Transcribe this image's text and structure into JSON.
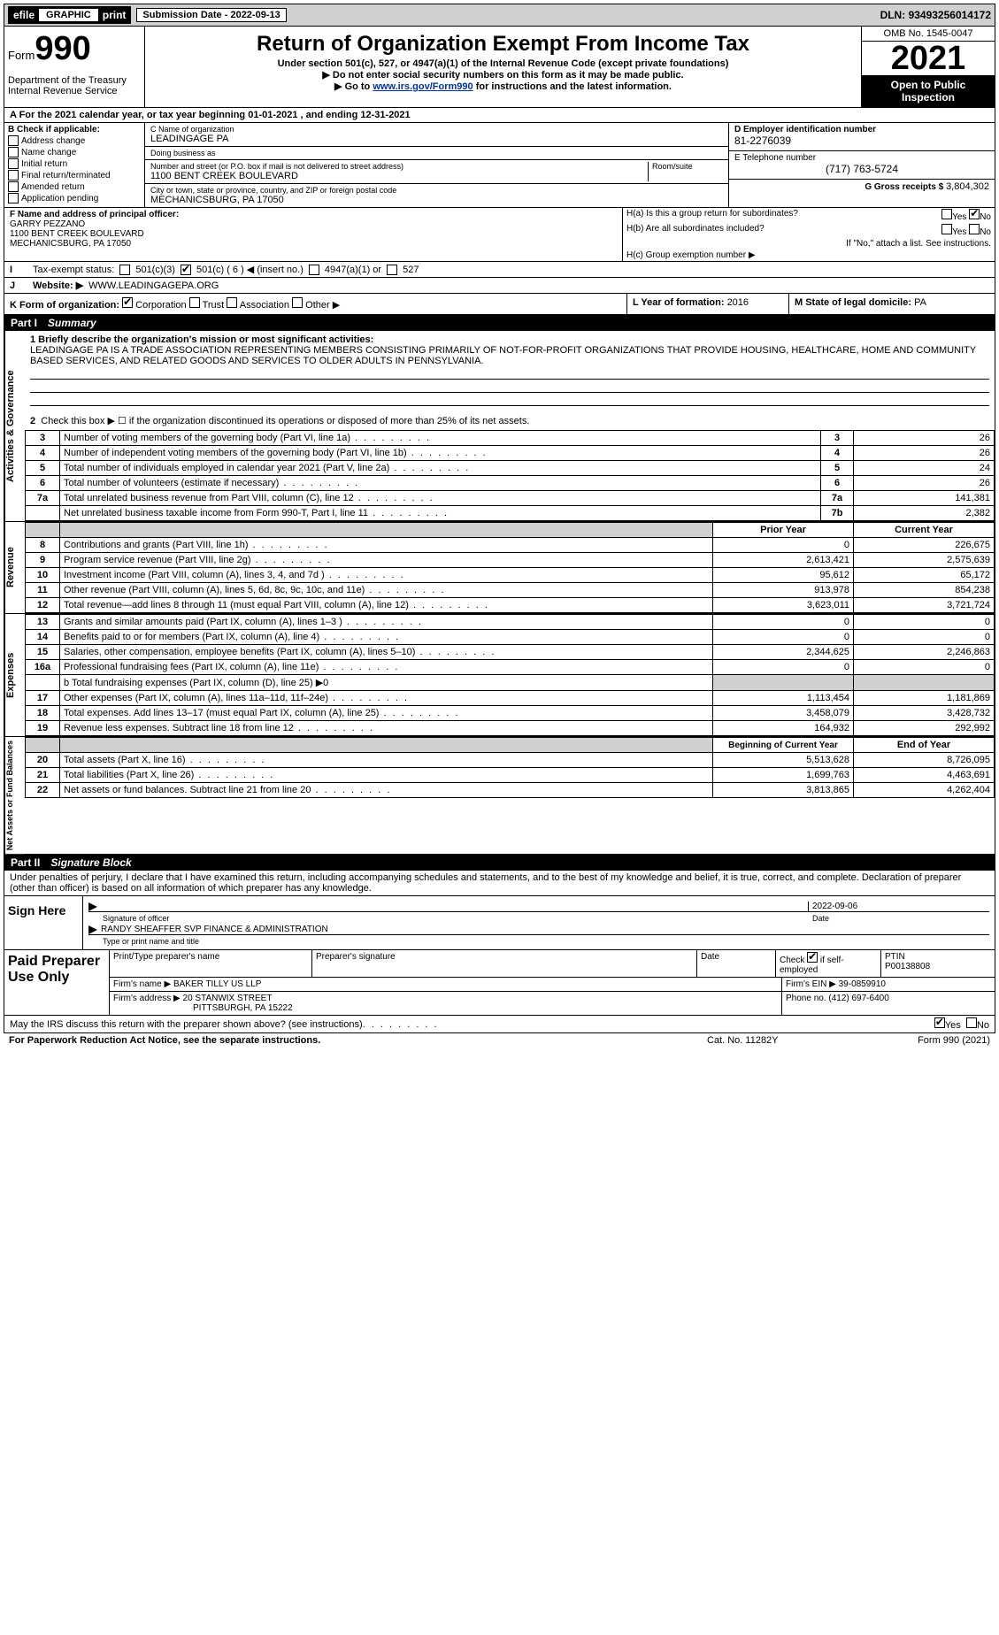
{
  "topbar": {
    "efile": "efile",
    "graphic": "GRAPHIC",
    "print": "print",
    "subdate_label": "Submission Date - ",
    "subdate": "2022-09-13",
    "dln_label": "DLN: ",
    "dln": "93493256014172"
  },
  "header": {
    "form_prefix": "Form",
    "form_num": "990",
    "dept": "Department of the Treasury Internal Revenue Service",
    "title": "Return of Organization Exempt From Income Tax",
    "sub1": "Under section 501(c), 527, or 4947(a)(1) of the Internal Revenue Code (except private foundations)",
    "sub2": "▶ Do not enter social security numbers on this form as it may be made public.",
    "sub3_pre": "▶ Go to ",
    "sub3_link": "www.irs.gov/Form990",
    "sub3_post": " for instructions and the latest information.",
    "omb": "OMB No. 1545-0047",
    "year": "2021",
    "open": "Open to Public Inspection"
  },
  "period": {
    "label_a": "A For the 2021 calendar year, or tax year beginning ",
    "begin": "01-01-2021",
    "mid": "   , and ending ",
    "end": "12-31-2021"
  },
  "sectionB": {
    "label": "B Check if applicable:",
    "opts": [
      "Address change",
      "Name change",
      "Initial return",
      "Final return/terminated",
      "Amended return",
      "Application pending"
    ]
  },
  "sectionC": {
    "name_label": "C Name of organization",
    "name": "LEADINGAGE PA",
    "dba_label": "Doing business as",
    "dba": "",
    "street_label": "Number and street (or P.O. box if mail is not delivered to street address)",
    "street": "1100 BENT CREEK BOULEVARD",
    "room_label": "Room/suite",
    "room": "",
    "city_label": "City or town, state or province, country, and ZIP or foreign postal code",
    "city": "MECHANICSBURG, PA  17050"
  },
  "sectionD": {
    "ein_label": "D Employer identification number",
    "ein": "81-2276039",
    "phone_label": "E Telephone number",
    "phone": "(717) 763-5724",
    "gross_label": "G Gross receipts $ ",
    "gross": "3,804,302"
  },
  "sectionF": {
    "label": "F Name and address of principal officer:",
    "officer_name": "GARRY PEZZANO",
    "officer_street": "1100 BENT CREEK BOULEVARD",
    "officer_city": "MECHANICSBURG, PA  17050"
  },
  "sectionH": {
    "a_label": "H(a)  Is this a group return for subordinates?",
    "b_label": "H(b)  Are all subordinates included?",
    "ifno": "If \"No,\" attach a list. See instructions.",
    "c_label": "H(c)  Group exemption number ▶"
  },
  "taxstatus": {
    "label": "Tax-exempt status:",
    "c3": "501(c)(3)",
    "cn": "501(c) ( 6 ) ◀ (insert no.)",
    "a1": "4947(a)(1) or",
    "527": "527"
  },
  "website": {
    "label": "Website: ▶",
    "value": "WWW.LEADINGAGEPA.ORG"
  },
  "formorg": {
    "label": "K Form of organization:",
    "corp": "Corporation",
    "trust": "Trust",
    "assoc": "Association",
    "other": "Other ▶"
  },
  "lyear": {
    "l_label": "L Year of formation: ",
    "l_val": "2016",
    "m_label": "M State of legal domicile: ",
    "m_val": "PA"
  },
  "part1": {
    "num": "Part I",
    "title": "Summary"
  },
  "mission": {
    "line1": "1 Briefly describe the organization's mission or most significant activities:",
    "text": "LEADINGAGE PA IS A TRADE ASSOCIATION REPRESENTING MEMBERS CONSISTING PRIMARILY OF NOT-FOR-PROFIT ORGANIZATIONS THAT PROVIDE HOUSING, HEALTHCARE, HOME AND COMMUNITY BASED SERVICES, AND RELATED GOODS AND SERVICES TO OLDER ADULTS IN PENNSYLVANIA."
  },
  "gov": {
    "side": "Activities & Governance",
    "l2": "Check this box ▶ ☐ if the organization discontinued its operations or disposed of more than 25% of its net assets.",
    "rows": [
      {
        "n": "3",
        "label": "Number of voting members of the governing body (Part VI, line 1a)",
        "idx": "3",
        "val": "26"
      },
      {
        "n": "4",
        "label": "Number of independent voting members of the governing body (Part VI, line 1b)",
        "idx": "4",
        "val": "26"
      },
      {
        "n": "5",
        "label": "Total number of individuals employed in calendar year 2021 (Part V, line 2a)",
        "idx": "5",
        "val": "24"
      },
      {
        "n": "6",
        "label": "Total number of volunteers (estimate if necessary)",
        "idx": "6",
        "val": "26"
      },
      {
        "n": "7a",
        "label": "Total unrelated business revenue from Part VIII, column (C), line 12",
        "idx": "7a",
        "val": "141,381"
      },
      {
        "n": "",
        "label": "Net unrelated business taxable income from Form 990-T, Part I, line 11",
        "idx": "7b",
        "val": "2,382"
      }
    ]
  },
  "rev": {
    "side": "Revenue",
    "header_prior": "Prior Year",
    "header_curr": "Current Year",
    "rows": [
      {
        "n": "8",
        "label": "Contributions and grants (Part VIII, line 1h)",
        "prior": "0",
        "curr": "226,675"
      },
      {
        "n": "9",
        "label": "Program service revenue (Part VIII, line 2g)",
        "prior": "2,613,421",
        "curr": "2,575,639"
      },
      {
        "n": "10",
        "label": "Investment income (Part VIII, column (A), lines 3, 4, and 7d )",
        "prior": "95,612",
        "curr": "65,172"
      },
      {
        "n": "11",
        "label": "Other revenue (Part VIII, column (A), lines 5, 6d, 8c, 9c, 10c, and 11e)",
        "prior": "913,978",
        "curr": "854,238"
      },
      {
        "n": "12",
        "label": "Total revenue—add lines 8 through 11 (must equal Part VIII, column (A), line 12)",
        "prior": "3,623,011",
        "curr": "3,721,724"
      }
    ]
  },
  "exp": {
    "side": "Expenses",
    "rows": [
      {
        "n": "13",
        "label": "Grants and similar amounts paid (Part IX, column (A), lines 1–3 )",
        "prior": "0",
        "curr": "0"
      },
      {
        "n": "14",
        "label": "Benefits paid to or for members (Part IX, column (A), line 4)",
        "prior": "0",
        "curr": "0"
      },
      {
        "n": "15",
        "label": "Salaries, other compensation, employee benefits (Part IX, column (A), lines 5–10)",
        "prior": "2,344,625",
        "curr": "2,246,863"
      },
      {
        "n": "16a",
        "label": "Professional fundraising fees (Part IX, column (A), line 11e)",
        "prior": "0",
        "curr": "0"
      }
    ],
    "b_label": "b  Total fundraising expenses (Part IX, column (D), line 25) ▶0",
    "rows2": [
      {
        "n": "17",
        "label": "Other expenses (Part IX, column (A), lines 11a–11d, 11f–24e)",
        "prior": "1,113,454",
        "curr": "1,181,869"
      },
      {
        "n": "18",
        "label": "Total expenses. Add lines 13–17 (must equal Part IX, column (A), line 25)",
        "prior": "3,458,079",
        "curr": "3,428,732"
      },
      {
        "n": "19",
        "label": "Revenue less expenses. Subtract line 18 from line 12",
        "prior": "164,932",
        "curr": "292,992"
      }
    ]
  },
  "net": {
    "side": "Net Assets or Fund Balances",
    "header_begin": "Beginning of Current Year",
    "header_end": "End of Year",
    "rows": [
      {
        "n": "20",
        "label": "Total assets (Part X, line 16)",
        "prior": "5,513,628",
        "curr": "8,726,095"
      },
      {
        "n": "21",
        "label": "Total liabilities (Part X, line 26)",
        "prior": "1,699,763",
        "curr": "4,463,691"
      },
      {
        "n": "22",
        "label": "Net assets or fund balances. Subtract line 21 from line 20",
        "prior": "3,813,865",
        "curr": "4,262,404"
      }
    ]
  },
  "part2": {
    "num": "Part II",
    "title": "Signature Block"
  },
  "sig": {
    "declare": "Under penalties of perjury, I declare that I have examined this return, including accompanying schedules and statements, and to the best of my knowledge and belief, it is true, correct, and complete. Declaration of preparer (other than officer) is based on all information of which preparer has any knowledge.",
    "signhere": "Sign Here",
    "sig_label": "Signature of officer",
    "date_label": "Date",
    "date_val": "2022-09-06",
    "printed": "RANDY SHEAFFER  SVP FINANCE & ADMINISTRATION",
    "printed_label": "Type or print name and title"
  },
  "paid": {
    "title": "Paid Preparer Use Only",
    "h1": "Print/Type preparer's name",
    "h2": "Preparer's signature",
    "h3": "Date",
    "h4_a": "Check",
    "h4_b": "if self-employed",
    "h5": "PTIN",
    "ptin": "P00138808",
    "firm_label": "Firm's name     ▶",
    "firm": "BAKER TILLY US LLP",
    "ein_label": "Firm's EIN ▶ ",
    "ein": "39-0859910",
    "addr_label": "Firm's address ▶",
    "addr1": "20 STANWIX STREET",
    "addr2": "PITTSBURGH, PA  15222",
    "phone_label": "Phone no. ",
    "phone": "(412) 697-6400"
  },
  "discuss": {
    "q": "May the IRS discuss this return with the preparer shown above? (see instructions)",
    "yes": "Yes",
    "no": "No"
  },
  "footer": {
    "pra": "For Paperwork Reduction Act Notice, see the separate instructions.",
    "cat": "Cat. No. 11282Y",
    "formyear": "Form 990 (2021)"
  },
  "colors": {
    "bg_shade": "#d0d0d0",
    "link": "#003399"
  }
}
